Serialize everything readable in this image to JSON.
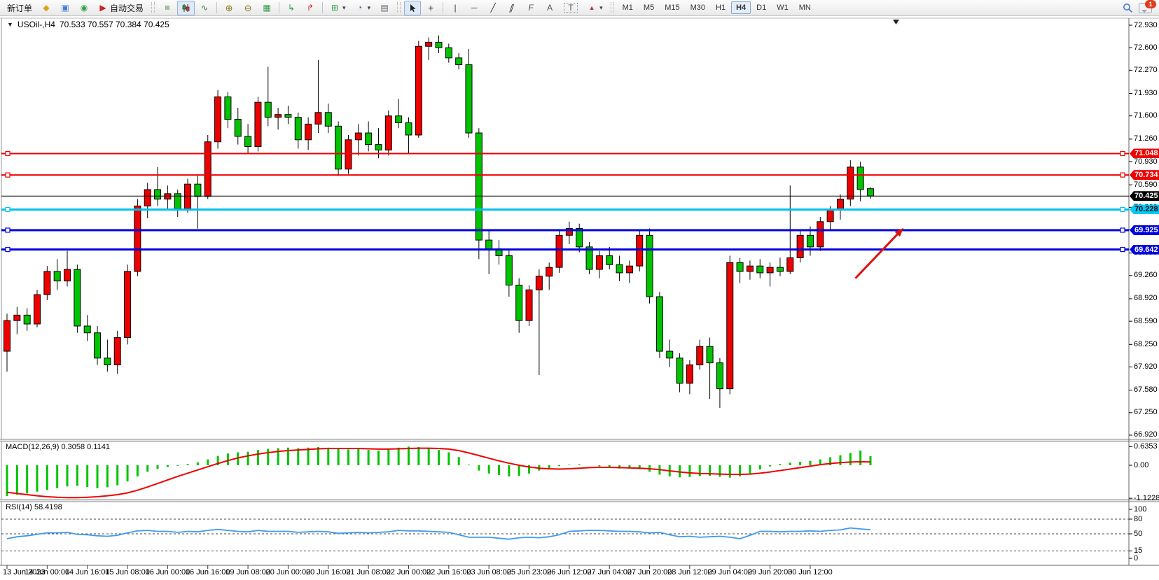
{
  "toolbar": {
    "new_order_label": "新订单",
    "autotrading_label": "自动交易",
    "glyphs": {
      "profiles": "◆",
      "charts_window": "▣",
      "community": "◉",
      "autotrading": "▶",
      "bar_chart": "≡",
      "line_chart": "∿",
      "zoom_in": "⊕",
      "zoom_out": "⊖",
      "tile_windows": "▦",
      "auto_scroll": "↳",
      "chart_shift": "↱",
      "add_indicator": "⊞",
      "periods": "◔",
      "templates": "▤",
      "crosshair": "+",
      "vertical_line": "|",
      "horizontal_line": "─",
      "trend_line": "╱",
      "channel": "∥",
      "fibonacci": "F",
      "text": "A",
      "text_label": "T",
      "shapes": "▲",
      "caret": "▾"
    },
    "timeframes": [
      "M1",
      "M5",
      "M15",
      "M30",
      "H1",
      "H4",
      "D1",
      "W1",
      "MN"
    ],
    "active_timeframe": "H4",
    "notification_badge": "1"
  },
  "window": {
    "symbol_period": "USOil-,H4",
    "ohlc_text": "70.533 70.557 70.384 70.425",
    "dropdown_glyph": "▼"
  },
  "chart_data": {
    "type": "candlestick",
    "symbol": "USOil-",
    "timeframe": "H4",
    "current": {
      "open": 70.533,
      "high": 70.557,
      "low": 70.384,
      "close": 70.425
    },
    "colors": {
      "up": "#ee0000",
      "down": "#00c400",
      "wick": "#000000",
      "rsi": "#3e9bef",
      "macd_hist": "#00c400",
      "macd_signal": "#ee0000",
      "arrow": "#dd1111"
    },
    "ylim": [
      66.92,
      72.93
    ],
    "grid": false,
    "candles": [
      [
        68.15,
        68.7,
        67.85,
        68.6
      ],
      [
        68.6,
        68.8,
        68.4,
        68.68
      ],
      [
        68.68,
        68.78,
        68.45,
        68.55
      ],
      [
        68.55,
        69.05,
        68.5,
        68.98
      ],
      [
        68.98,
        69.4,
        68.9,
        69.32
      ],
      [
        69.32,
        69.5,
        69.05,
        69.18
      ],
      [
        69.18,
        69.62,
        69.1,
        69.35
      ],
      [
        69.35,
        69.42,
        68.42,
        68.52
      ],
      [
        68.52,
        68.68,
        68.3,
        68.42
      ],
      [
        68.42,
        68.52,
        67.95,
        68.05
      ],
      [
        68.05,
        68.32,
        67.85,
        67.95
      ],
      [
        67.95,
        68.45,
        67.82,
        68.35
      ],
      [
        68.35,
        69.42,
        68.25,
        69.32
      ],
      [
        69.32,
        70.38,
        69.25,
        70.28
      ],
      [
        70.28,
        70.62,
        70.1,
        70.52
      ],
      [
        70.52,
        70.85,
        70.28,
        70.38
      ],
      [
        70.38,
        70.58,
        70.22,
        70.46
      ],
      [
        70.46,
        70.52,
        70.12,
        70.24
      ],
      [
        70.24,
        70.68,
        70.18,
        70.6
      ],
      [
        70.6,
        70.72,
        69.95,
        70.42
      ],
      [
        70.42,
        71.32,
        70.38,
        71.22
      ],
      [
        71.22,
        71.98,
        71.12,
        71.88
      ],
      [
        71.88,
        71.95,
        71.42,
        71.55
      ],
      [
        71.55,
        71.72,
        71.18,
        71.3
      ],
      [
        71.3,
        71.48,
        71.05,
        71.15
      ],
      [
        71.15,
        71.88,
        71.08,
        71.8
      ],
      [
        71.8,
        72.32,
        71.45,
        71.58
      ],
      [
        71.58,
        71.72,
        71.4,
        71.62
      ],
      [
        71.62,
        71.75,
        71.48,
        71.58
      ],
      [
        71.58,
        71.65,
        71.12,
        71.25
      ],
      [
        71.25,
        71.58,
        71.1,
        71.48
      ],
      [
        71.48,
        72.42,
        71.35,
        71.65
      ],
      [
        71.65,
        71.78,
        71.35,
        71.45
      ],
      [
        71.45,
        71.52,
        70.72,
        70.82
      ],
      [
        70.82,
        71.32,
        70.75,
        71.25
      ],
      [
        71.25,
        71.48,
        71.02,
        71.35
      ],
      [
        71.35,
        71.52,
        71.08,
        71.18
      ],
      [
        71.18,
        71.42,
        70.98,
        71.1
      ],
      [
        71.1,
        71.68,
        71.02,
        71.6
      ],
      [
        71.6,
        71.85,
        71.42,
        71.5
      ],
      [
        71.5,
        71.58,
        71.05,
        71.32
      ],
      [
        71.32,
        72.7,
        71.28,
        72.62
      ],
      [
        72.62,
        72.75,
        72.42,
        72.68
      ],
      [
        72.68,
        72.78,
        72.52,
        72.6
      ],
      [
        72.6,
        72.66,
        72.38,
        72.45
      ],
      [
        72.45,
        72.52,
        72.28,
        72.35
      ],
      [
        72.35,
        72.58,
        71.28,
        71.35
      ],
      [
        71.35,
        71.42,
        69.5,
        69.78
      ],
      [
        69.78,
        69.92,
        69.28,
        69.65
      ],
      [
        69.65,
        69.78,
        69.42,
        69.55
      ],
      [
        69.55,
        69.65,
        68.95,
        69.12
      ],
      [
        69.12,
        69.22,
        68.42,
        68.6
      ],
      [
        68.6,
        69.12,
        68.52,
        69.05
      ],
      [
        69.05,
        69.35,
        67.8,
        69.25
      ],
      [
        69.25,
        69.45,
        69.05,
        69.38
      ],
      [
        69.38,
        69.92,
        69.3,
        69.85
      ],
      [
        69.85,
        70.05,
        69.72,
        69.95
      ],
      [
        69.95,
        70.02,
        69.6,
        69.68
      ],
      [
        69.68,
        69.75,
        69.28,
        69.35
      ],
      [
        69.35,
        69.62,
        69.22,
        69.55
      ],
      [
        69.55,
        69.68,
        69.35,
        69.42
      ],
      [
        69.42,
        69.55,
        69.18,
        69.3
      ],
      [
        69.3,
        69.48,
        69.15,
        69.4
      ],
      [
        69.4,
        69.92,
        69.32,
        69.85
      ],
      [
        69.85,
        69.95,
        68.85,
        68.95
      ],
      [
        68.95,
        69.02,
        68.05,
        68.15
      ],
      [
        68.15,
        68.32,
        67.92,
        68.05
      ],
      [
        68.05,
        68.12,
        67.55,
        67.68
      ],
      [
        67.68,
        68.02,
        67.52,
        67.95
      ],
      [
        67.95,
        68.32,
        67.88,
        68.22
      ],
      [
        68.22,
        68.35,
        67.45,
        67.98
      ],
      [
        67.98,
        68.05,
        67.32,
        67.6
      ],
      [
        67.6,
        69.55,
        67.52,
        69.45
      ],
      [
        69.45,
        69.52,
        69.15,
        69.32
      ],
      [
        69.32,
        69.48,
        69.2,
        69.4
      ],
      [
        69.4,
        69.5,
        69.22,
        69.3
      ],
      [
        69.3,
        69.45,
        69.1,
        69.38
      ],
      [
        69.38,
        69.52,
        69.25,
        69.32
      ],
      [
        69.32,
        70.58,
        69.28,
        69.52
      ],
      [
        69.52,
        69.92,
        69.45,
        69.85
      ],
      [
        69.85,
        69.98,
        69.55,
        69.68
      ],
      [
        69.68,
        70.12,
        69.62,
        70.05
      ],
      [
        70.05,
        70.28,
        69.92,
        70.22
      ],
      [
        70.22,
        70.45,
        70.08,
        70.38
      ],
      [
        70.38,
        70.95,
        70.28,
        70.85
      ],
      [
        70.85,
        70.93,
        70.35,
        70.52
      ],
      [
        70.533,
        70.557,
        70.384,
        70.425
      ]
    ],
    "lines": [
      {
        "price": 71.048,
        "color": "#f00000",
        "width": 2,
        "tag": "71.048",
        "tag_bg": "#ee0000",
        "tag_fg": "#ffffff",
        "handles": true
      },
      {
        "price": 70.734,
        "color": "#f00000",
        "width": 2,
        "tag": "70.734",
        "tag_bg": "#ee0000",
        "tag_fg": "#ffffff",
        "handles": true
      },
      {
        "price": 70.425,
        "color": "#000000",
        "width": 1,
        "tag": "70.425",
        "tag_bg": "#000000",
        "tag_fg": "#ffffff",
        "handles": false
      },
      {
        "price": 70.228,
        "color": "#00c0f0",
        "width": 3,
        "tag": "70.228",
        "tag_bg": "#00c8f8",
        "tag_fg": "#000000",
        "handles": true
      },
      {
        "price": 69.925,
        "color": "#0000e0",
        "width": 3,
        "tag": "69.925",
        "tag_bg": "#0000dd",
        "tag_fg": "#ffffff",
        "handles": true
      },
      {
        "price": 69.642,
        "color": "#0000e0",
        "width": 3,
        "tag": "69.642",
        "tag_bg": "#0000dd",
        "tag_fg": "#ffffff",
        "handles": true
      }
    ],
    "price_ticks": [
      72.93,
      72.6,
      72.27,
      71.93,
      71.6,
      71.26,
      70.93,
      70.59,
      70.26,
      69.93,
      69.59,
      69.26,
      68.92,
      68.59,
      68.25,
      67.92,
      67.58,
      67.25,
      66.92
    ],
    "time_labels": [
      "13 Jun 2023",
      "14 Jun 00:00",
      "14 Jun 16:00",
      "15 Jun 08:00",
      "16 Jun 00:00",
      "16 Jun 16:00",
      "19 Jun 08:00",
      "20 Jun 00:00",
      "20 Jun 16:00",
      "21 Jun 08:00",
      "22 Jun 00:00",
      "22 Jun 16:00",
      "23 Jun 08:00",
      "25 Jun 23:00",
      "26 Jun 12:00",
      "27 Jun 04:00",
      "27 Jun 20:00",
      "28 Jun 12:00",
      "29 Jun 04:00",
      "29 Jun 20:00",
      "30 Jun 12:00"
    ],
    "label_step": 4,
    "macd": {
      "label": "MACD(12,26,9) 0.3058 0.1141",
      "params": [
        12,
        26,
        9
      ],
      "value_main": 0.3058,
      "value_signal": 0.1141,
      "axis": [
        0.6353,
        0.0,
        -1.1228
      ],
      "histogram": [
        -1.05,
        -1.0,
        -0.96,
        -0.9,
        -0.84,
        -0.78,
        -0.72,
        -0.7,
        -0.74,
        -0.78,
        -0.75,
        -0.68,
        -0.55,
        -0.38,
        -0.22,
        -0.12,
        -0.06,
        -0.02,
        0.04,
        0.1,
        0.2,
        0.32,
        0.4,
        0.44,
        0.46,
        0.52,
        0.56,
        0.58,
        0.6,
        0.58,
        0.6,
        0.62,
        0.6,
        0.55,
        0.54,
        0.55,
        0.52,
        0.5,
        0.55,
        0.6,
        0.635,
        0.62,
        0.58,
        0.52,
        0.44,
        0.28,
        0.02,
        -0.18,
        -0.28,
        -0.33,
        -0.38,
        -0.36,
        -0.28,
        -0.18,
        -0.1,
        -0.03,
        0.02,
        0.03,
        0.0,
        -0.04,
        -0.08,
        -0.11,
        -0.1,
        -0.13,
        -0.22,
        -0.32,
        -0.38,
        -0.41,
        -0.4,
        -0.37,
        -0.36,
        -0.39,
        -0.42,
        -0.38,
        -0.28,
        -0.14,
        -0.04,
        0.04,
        0.09,
        0.12,
        0.15,
        0.2,
        0.27,
        0.34,
        0.42,
        0.5,
        0.31
      ],
      "signal": [
        -0.92,
        -0.96,
        -1.0,
        -1.04,
        -1.07,
        -1.09,
        -1.1,
        -1.1,
        -1.09,
        -1.07,
        -1.04,
        -1.0,
        -0.94,
        -0.85,
        -0.74,
        -0.62,
        -0.5,
        -0.38,
        -0.27,
        -0.16,
        -0.05,
        0.06,
        0.16,
        0.25,
        0.32,
        0.38,
        0.43,
        0.47,
        0.5,
        0.52,
        0.54,
        0.56,
        0.57,
        0.57,
        0.57,
        0.57,
        0.56,
        0.55,
        0.55,
        0.56,
        0.57,
        0.58,
        0.58,
        0.57,
        0.55,
        0.5,
        0.42,
        0.33,
        0.24,
        0.15,
        0.07,
        0.0,
        -0.06,
        -0.1,
        -0.12,
        -0.13,
        -0.12,
        -0.1,
        -0.08,
        -0.07,
        -0.07,
        -0.08,
        -0.09,
        -0.1,
        -0.12,
        -0.15,
        -0.19,
        -0.23,
        -0.26,
        -0.28,
        -0.29,
        -0.3,
        -0.31,
        -0.31,
        -0.3,
        -0.27,
        -0.23,
        -0.18,
        -0.13,
        -0.08,
        -0.03,
        0.02,
        0.06,
        0.09,
        0.11,
        0.12,
        0.114
      ]
    },
    "rsi": {
      "label": "RSI(14) 58.4198",
      "period": 14,
      "value": 58.4198,
      "axis": [
        100,
        80,
        50,
        15,
        0
      ],
      "levels": [
        80,
        50,
        15
      ],
      "values": [
        40,
        44,
        46,
        49,
        52,
        52,
        53,
        49,
        48,
        46,
        45,
        47,
        52,
        56,
        57,
        55,
        55,
        53,
        55,
        54,
        57,
        59,
        57,
        55,
        54,
        57,
        55,
        55,
        55,
        53,
        54,
        55,
        54,
        51,
        52,
        53,
        52,
        53,
        54,
        57,
        56,
        56,
        55,
        54,
        53,
        48,
        43,
        43,
        43,
        41,
        39,
        42,
        43,
        42,
        44,
        48,
        55,
        56,
        57,
        57,
        56,
        55,
        55,
        54,
        52,
        53,
        48,
        44,
        45,
        43,
        44,
        45,
        43,
        40,
        47,
        55,
        55,
        54,
        55,
        55,
        56,
        55,
        57,
        58,
        62,
        60,
        58.4
      ]
    },
    "arrow": {
      "from_index": 84.5,
      "from_price": 69.22,
      "to_index": 89.3,
      "to_price": 69.96
    }
  }
}
